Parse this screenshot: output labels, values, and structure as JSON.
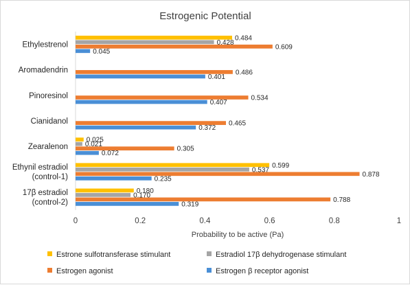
{
  "chart_data": {
    "type": "bar",
    "orientation": "horizontal",
    "title": "Estrogenic Potential",
    "xlabel": "Probability to be active (Pa)",
    "ylabel": "",
    "xlim": [
      0,
      1
    ],
    "xticks": [
      "0",
      "0.2",
      "0.4",
      "0.6",
      "0.8",
      "1"
    ],
    "grid": false,
    "legend_position": "bottom",
    "categories": [
      [
        "Ethylestrenol"
      ],
      [
        "Aromadendrin"
      ],
      [
        "Pinoresinol"
      ],
      [
        "Cianidanol"
      ],
      [
        "Zearalenon"
      ],
      [
        "Ethynil estradiol",
        "(control-1)"
      ],
      [
        "17β estradiol",
        "(control-2)"
      ]
    ],
    "series": [
      {
        "name": "Estrone sulfotransferase stimulant",
        "color": "#FFC000",
        "values": [
          0.484,
          null,
          null,
          null,
          0.025,
          0.599,
          0.18
        ],
        "labels": [
          "0.484",
          null,
          null,
          null,
          "0.025",
          "0.599",
          "0.180"
        ]
      },
      {
        "name": "Estradiol 17β dehydrogenase stimulant",
        "color": "#A5A5A5",
        "values": [
          0.428,
          null,
          null,
          null,
          0.021,
          0.537,
          0.17
        ],
        "labels": [
          "0.428",
          null,
          null,
          null,
          "0.021",
          "0.537",
          "0.170"
        ]
      },
      {
        "name": "Estrogen agonist",
        "color": "#ED7D31",
        "values": [
          0.609,
          0.486,
          0.534,
          0.465,
          0.305,
          0.878,
          0.788
        ],
        "labels": [
          "0.609",
          "0.486",
          "0.534",
          "0.465",
          "0.305",
          "0.878",
          "0.788"
        ]
      },
      {
        "name": "Estrogen β receptor agonist",
        "color": "#4A8FD6",
        "values": [
          0.045,
          0.401,
          0.407,
          0.372,
          0.072,
          0.235,
          0.319
        ],
        "labels": [
          "0.045",
          "0.401",
          "0.407",
          "0.372",
          "0.072",
          "0.235",
          "0.319"
        ]
      }
    ]
  }
}
